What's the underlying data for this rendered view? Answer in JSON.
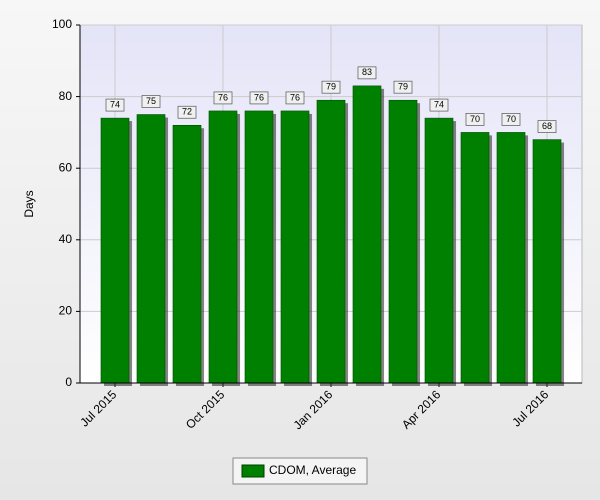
{
  "chart_data": {
    "type": "bar",
    "y_label": "Days",
    "categories": [
      "Jul 2015",
      null,
      null,
      "Oct 2015",
      null,
      null,
      "Jan 2016",
      null,
      null,
      "Apr 2016",
      null,
      null,
      "Jul 2016"
    ],
    "series": [
      {
        "name": "CDOM, Average",
        "color": "#008000",
        "values": [
          74,
          75,
          72,
          76,
          76,
          76,
          79,
          83,
          79,
          74,
          70,
          70,
          68
        ]
      }
    ],
    "ylim": [
      0,
      100
    ],
    "yticks": [
      0,
      20,
      40,
      60,
      80,
      100
    ],
    "grid": true,
    "legend": "bottom"
  }
}
